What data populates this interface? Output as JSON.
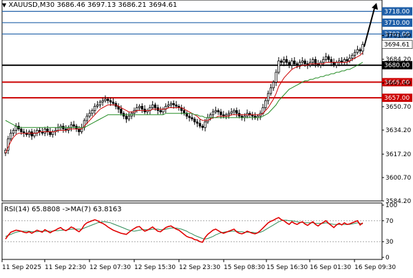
{
  "header": {
    "symbol": "XAUUSD,M30",
    "ohlc": "3686.46 3697.13 3686.21 3694.61"
  },
  "rsi_header": {
    "text": "RSI(14) 65.8808",
    "ma_text": "->MA(7) 63.8163"
  },
  "colors": {
    "background": "#ffffff",
    "candle": "#000000",
    "ma_fast": "#cc0000",
    "ma_slow": "#228b22",
    "ma_mid": "#3aa63a",
    "resistance": "#1f5fa8",
    "support": "#cc0000",
    "pivot": "#000000",
    "rsi": "#e00000",
    "rsi_ma": "#2e8b57",
    "arrow": "#000000"
  },
  "chart_data": [
    {
      "type": "candlestick",
      "title": "XAUUSD,M30",
      "ylim": [
        3584.2,
        3726
      ],
      "y_ticks": [
        "3701.00",
        "3684.20",
        "3667.40",
        "3650.70",
        "3634.20",
        "3617.20",
        "3600.70",
        "3584.20"
      ],
      "x_ticks": [
        "11 Sep 2025",
        "11 Sep 22:30",
        "12 Sep 07:30",
        "12 Sep 15:30",
        "12 Sep 23:30",
        "15 Sep 08:30",
        "15 Sep 16:30",
        "16 Sep 01:30",
        "16 Sep 09:30"
      ],
      "levels": [
        {
          "value": 3718.0,
          "label": "3718.00",
          "kind": "resistance"
        },
        {
          "value": 3710.0,
          "label": "3710.00",
          "kind": "resistance"
        },
        {
          "value": 3702.0,
          "label": "3702.00",
          "kind": "resistance"
        },
        {
          "value": 3680.0,
          "label": "3680.00",
          "kind": "pivot"
        },
        {
          "value": 3668.0,
          "label": "3668.00",
          "kind": "support"
        },
        {
          "value": 3657.0,
          "label": "3657.00",
          "kind": "support"
        }
      ],
      "current_price": {
        "value": 3694.61,
        "label": "3694.61"
      },
      "close_series": [
        3620,
        3628,
        3632,
        3634,
        3637,
        3635,
        3633,
        3632,
        3631,
        3633,
        3630,
        3632,
        3634,
        3633,
        3632,
        3635,
        3633,
        3631,
        3633,
        3634,
        3636,
        3637,
        3635,
        3634,
        3636,
        3638,
        3637,
        3635,
        3633,
        3636,
        3641,
        3644,
        3646,
        3648,
        3651,
        3652,
        3654,
        3655,
        3656,
        3655,
        3654,
        3653,
        3651,
        3649,
        3646,
        3644,
        3642,
        3644,
        3646,
        3648,
        3650,
        3651,
        3649,
        3647,
        3648,
        3650,
        3652,
        3650,
        3648,
        3647,
        3649,
        3651,
        3652,
        3653,
        3652,
        3651,
        3650,
        3648,
        3646,
        3644,
        3643,
        3642,
        3640,
        3639,
        3637,
        3636,
        3640,
        3643,
        3645,
        3647,
        3648,
        3647,
        3645,
        3644,
        3645,
        3646,
        3647,
        3648,
        3646,
        3644,
        3643,
        3644,
        3646,
        3645,
        3644,
        3643,
        3644,
        3646,
        3650,
        3655,
        3660,
        3664,
        3668,
        3675,
        3683,
        3682,
        3684,
        3682,
        3680,
        3683,
        3681,
        3680,
        3682,
        3683,
        3681,
        3680,
        3682,
        3684,
        3681,
        3680,
        3682,
        3684,
        3686,
        3684,
        3682,
        3680,
        3682,
        3683,
        3682,
        3684,
        3683,
        3685,
        3687,
        3689,
        3691,
        3690,
        3694.61
      ],
      "ma_fast_series": [
        3618,
        3622,
        3626,
        3629,
        3631,
        3632,
        3632,
        3632,
        3632,
        3632,
        3632,
        3632,
        3632,
        3633,
        3633,
        3633,
        3633,
        3633,
        3633,
        3633,
        3634,
        3634,
        3634,
        3634,
        3635,
        3635,
        3635,
        3635,
        3635,
        3635,
        3637,
        3639,
        3641,
        3643,
        3645,
        3647,
        3649,
        3650,
        3651,
        3652,
        3652,
        3652,
        3652,
        3651,
        3650,
        3649,
        3648,
        3647,
        3647,
        3647,
        3648,
        3648,
        3648,
        3648,
        3648,
        3648,
        3649,
        3649,
        3649,
        3649,
        3649,
        3649,
        3650,
        3650,
        3650,
        3650,
        3650,
        3650,
        3649,
        3648,
        3647,
        3646,
        3645,
        3644,
        3642,
        3641,
        3641,
        3641,
        3642,
        3643,
        3643,
        3644,
        3644,
        3644,
        3644,
        3644,
        3645,
        3645,
        3645,
        3645,
        3645,
        3645,
        3645,
        3645,
        3645,
        3645,
        3645,
        3645,
        3646,
        3648,
        3650,
        3653,
        3656,
        3660,
        3665,
        3668,
        3671,
        3673,
        3675,
        3677,
        3678,
        3679,
        3679,
        3680,
        3680,
        3680,
        3681,
        3681,
        3681,
        3681,
        3681,
        3681,
        3682,
        3682,
        3682,
        3682,
        3682,
        3682,
        3682,
        3682,
        3682,
        3683,
        3684,
        3685,
        3686,
        3687,
        3689
      ],
      "ma_slow_series": [
        3641,
        3640,
        3639,
        3638,
        3637,
        3636,
        3636,
        3636,
        3636,
        3636,
        3636,
        3636,
        3636,
        3636,
        3636,
        3636,
        3636,
        3636,
        3636,
        3636,
        3636,
        3636,
        3636,
        3636,
        3636,
        3636,
        3636,
        3636,
        3636,
        3636,
        3636,
        3637,
        3638,
        3639,
        3640,
        3641,
        3642,
        3643,
        3644,
        3645,
        3645,
        3645,
        3645,
        3645,
        3645,
        3645,
        3645,
        3645,
        3645,
        3645,
        3645,
        3645,
        3645,
        3645,
        3645,
        3645,
        3645,
        3645,
        3645,
        3645,
        3645,
        3646,
        3646,
        3646,
        3646,
        3646,
        3646,
        3646,
        3646,
        3646,
        3646,
        3646,
        3645,
        3645,
        3644,
        3644,
        3643,
        3643,
        3643,
        3643,
        3643,
        3643,
        3643,
        3643,
        3643,
        3643,
        3643,
        3643,
        3643,
        3643,
        3643,
        3643,
        3643,
        3643,
        3643,
        3643,
        3643,
        3643,
        3644,
        3645,
        3646,
        3648,
        3650,
        3652,
        3655,
        3657,
        3659,
        3661,
        3663,
        3664,
        3665,
        3666,
        3667,
        3668,
        3669,
        3669,
        3670,
        3670,
        3671,
        3671,
        3672,
        3672,
        3673,
        3673,
        3674,
        3674,
        3675,
        3675,
        3676,
        3676,
        3677,
        3677,
        3678,
        3679,
        3680,
        3681,
        3682
      ]
    },
    {
      "type": "line",
      "title": "RSI(14)",
      "ylim": [
        0,
        100
      ],
      "y_ticks": [
        "100",
        "70",
        "30",
        "0"
      ],
      "levels": [
        70,
        30
      ],
      "series": [
        {
          "name": "RSI(14)",
          "values": [
            35,
            42,
            48,
            50,
            52,
            51,
            50,
            48,
            47,
            49,
            46,
            49,
            52,
            50,
            48,
            53,
            50,
            47,
            50,
            52,
            55,
            57,
            53,
            51,
            54,
            58,
            56,
            52,
            49,
            54,
            62,
            66,
            68,
            70,
            72,
            70,
            67,
            65,
            62,
            58,
            55,
            52,
            50,
            48,
            46,
            45,
            44,
            48,
            52,
            55,
            58,
            59,
            54,
            50,
            52,
            55,
            58,
            54,
            50,
            49,
            53,
            57,
            59,
            60,
            57,
            54,
            52,
            48,
            44,
            40,
            38,
            37,
            34,
            33,
            30,
            29,
            38,
            44,
            48,
            52,
            54,
            51,
            48,
            46,
            48,
            50,
            52,
            54,
            49,
            46,
            45,
            47,
            50,
            48,
            46,
            45,
            47,
            51,
            56,
            61,
            66,
            69,
            71,
            74,
            76,
            72,
            70,
            66,
            63,
            68,
            65,
            63,
            66,
            68,
            64,
            61,
            65,
            68,
            63,
            60,
            64,
            67,
            70,
            65,
            61,
            57,
            62,
            65,
            62,
            66,
            63,
            64,
            66,
            68,
            70,
            62,
            65.88
          ]
        },
        {
          "name": "MA(7)",
          "values": [
            40,
            42,
            44,
            46,
            48,
            49,
            50,
            50,
            50,
            50,
            49,
            49,
            49,
            50,
            50,
            50,
            50,
            50,
            50,
            51,
            51,
            52,
            52,
            52,
            53,
            54,
            54,
            54,
            54,
            54,
            56,
            58,
            60,
            62,
            64,
            66,
            67,
            68,
            68,
            67,
            66,
            64,
            62,
            60,
            58,
            56,
            54,
            52,
            51,
            50,
            51,
            52,
            53,
            53,
            53,
            53,
            54,
            54,
            54,
            53,
            53,
            54,
            55,
            56,
            56,
            56,
            55,
            54,
            52,
            50,
            47,
            45,
            42,
            40,
            38,
            36,
            35,
            36,
            38,
            40,
            43,
            45,
            47,
            48,
            49,
            49,
            50,
            50,
            50,
            49,
            49,
            48,
            48,
            48,
            48,
            47,
            47,
            48,
            50,
            53,
            56,
            59,
            62,
            65,
            68,
            70,
            71,
            71,
            70,
            70,
            69,
            68,
            67,
            67,
            66,
            66,
            66,
            66,
            65,
            65,
            65,
            65,
            66,
            65,
            64,
            63,
            63,
            63,
            63,
            63,
            63,
            63,
            64,
            65,
            66,
            65,
            63.82
          ]
        }
      ]
    }
  ]
}
